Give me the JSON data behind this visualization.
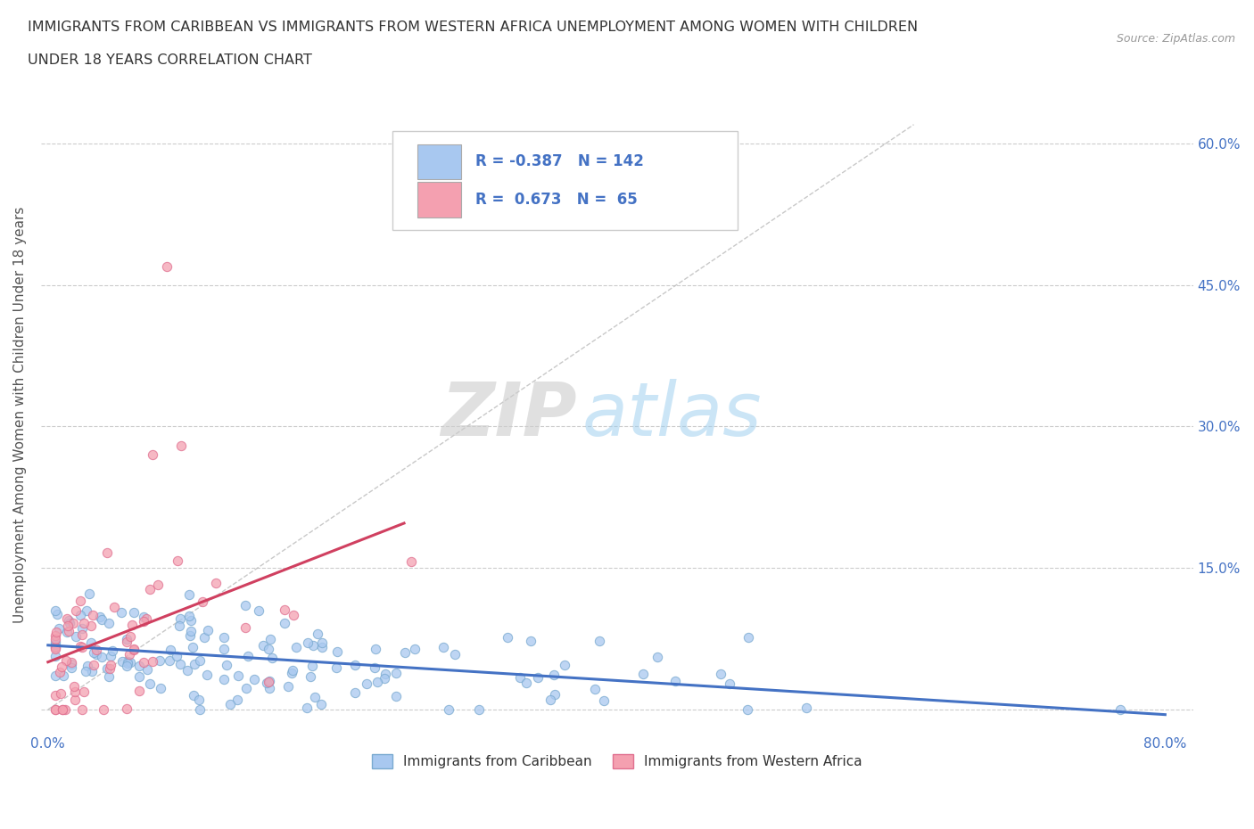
{
  "title_line1": "IMMIGRANTS FROM CARIBBEAN VS IMMIGRANTS FROM WESTERN AFRICA UNEMPLOYMENT AMONG WOMEN WITH CHILDREN",
  "title_line2": "UNDER 18 YEARS CORRELATION CHART",
  "source_text": "Source: ZipAtlas.com",
  "ylabel": "Unemployment Among Women with Children Under 18 years",
  "xlim": [
    -0.005,
    0.82
  ],
  "ylim": [
    -0.025,
    0.65
  ],
  "ytick_positions": [
    0.0,
    0.15,
    0.3,
    0.45,
    0.6
  ],
  "grid_color": "#cccccc",
  "background_color": "#ffffff",
  "caribbean_color": "#a8c8f0",
  "caribbean_edge_color": "#7aaad0",
  "western_africa_color": "#f4a0b0",
  "western_africa_edge_color": "#e07090",
  "caribbean_line_color": "#4472c4",
  "western_africa_line_color": "#d04060",
  "diagonal_color": "#bbbbbb",
  "R_caribbean": -0.387,
  "N_caribbean": 142,
  "R_western_africa": 0.673,
  "N_western_africa": 65,
  "watermark_ZIP": "ZIP",
  "watermark_atlas": "atlas",
  "legend_label_caribbean": "Immigrants from Caribbean",
  "legend_label_western_africa": "Immigrants from Western Africa",
  "title_color": "#333333",
  "axis_label_color": "#4472c4",
  "ylabel_color": "#555555"
}
